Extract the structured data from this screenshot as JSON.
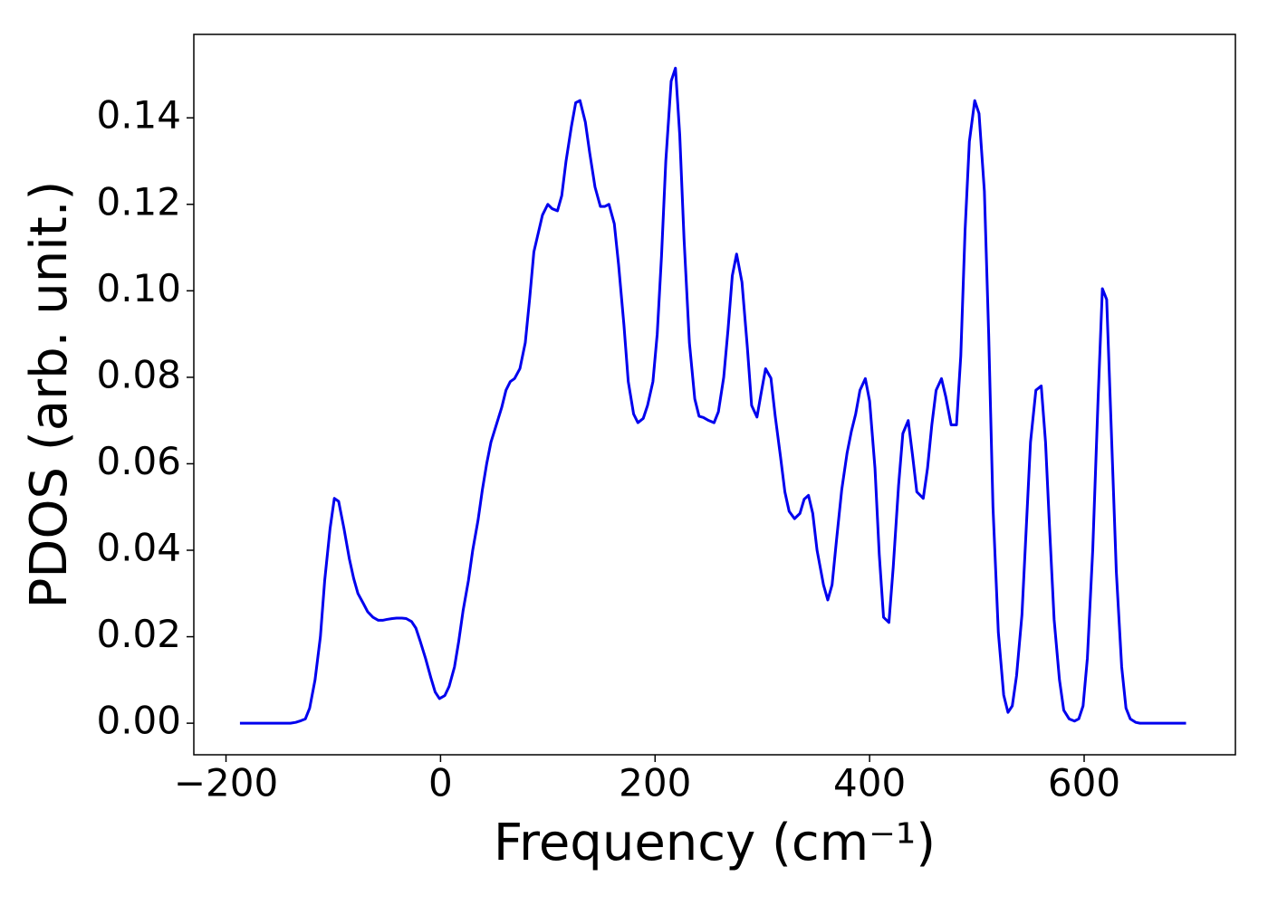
{
  "chart_data": {
    "type": "line",
    "x_label": "Frequency (cm⁻¹)",
    "y_label": "PDOS (arb. unit.)",
    "xlim": [
      -230,
      741
    ],
    "ylim": [
      -0.0073,
      0.1593
    ],
    "xticks": [
      {
        "value": -200,
        "label": "−200"
      },
      0,
      200,
      400,
      600
    ],
    "yticks": [
      {
        "value": 0,
        "label": "0.00"
      },
      {
        "value": 0.02,
        "label": "0.02"
      },
      {
        "value": 0.04,
        "label": "0.04"
      },
      {
        "value": 0.06,
        "label": "0.06"
      },
      {
        "value": 0.08,
        "label": "0.08"
      },
      {
        "value": 0.1,
        "label": "0.10"
      },
      {
        "value": 0.12,
        "label": "0.12"
      },
      {
        "value": 0.14,
        "label": "0.14"
      }
    ],
    "color": "#0000ee",
    "x": [
      -187,
      -183,
      -178,
      -174,
      -170,
      -165,
      -161,
      -157,
      -152,
      -148,
      -144,
      -140,
      -135,
      -131,
      -126,
      -122,
      -117,
      -112,
      -108,
      -103,
      -99,
      -95,
      -90,
      -85,
      -81,
      -77,
      -72,
      -68,
      -63,
      -58,
      -54,
      -50,
      -45,
      -41,
      -36,
      -32,
      -27,
      -23,
      -19,
      -14,
      -9,
      -5,
      -1,
      4,
      8,
      13,
      17,
      21,
      26,
      30,
      35,
      39,
      43,
      47,
      52,
      57,
      61,
      65,
      69,
      74,
      79,
      83,
      87,
      95,
      100,
      104,
      109,
      113,
      117,
      122,
      126,
      130,
      135,
      139,
      144,
      149,
      153,
      157,
      162,
      166,
      171,
      175,
      180,
      184,
      189,
      193,
      198,
      202,
      206,
      210,
      215,
      219,
      223,
      227,
      232,
      237,
      241,
      245,
      250,
      255,
      259,
      264,
      268,
      272,
      276,
      281,
      286,
      290,
      295,
      299,
      303,
      308,
      312,
      317,
      321,
      325,
      330,
      335,
      339,
      343,
      347,
      351,
      357,
      361,
      365,
      369,
      374,
      379,
      383,
      387,
      391,
      396,
      400,
      405,
      409,
      413,
      418,
      422,
      427,
      431,
      436,
      440,
      444,
      450,
      454,
      458,
      462,
      467,
      471,
      476,
      481,
      485,
      489,
      493,
      498,
      502,
      507,
      511,
      515,
      520,
      525,
      529,
      533,
      537,
      542,
      546,
      550,
      555,
      560,
      564,
      568,
      572,
      577,
      581,
      586,
      591,
      595,
      599,
      603,
      608,
      613,
      617,
      621,
      625,
      630,
      635,
      639,
      643,
      648,
      652,
      656,
      661,
      665,
      669,
      674,
      678,
      682,
      687,
      691,
      695
    ],
    "values": [
      0,
      0,
      0,
      0,
      0,
      0,
      0,
      0,
      0,
      0,
      0,
      0,
      0.0002,
      0.0005,
      0.001,
      0.0035,
      0.01,
      0.02,
      0.033,
      0.045,
      0.052,
      0.0513,
      0.045,
      0.038,
      0.0335,
      0.03,
      0.0277,
      0.0258,
      0.0245,
      0.0238,
      0.0238,
      0.024,
      0.0242,
      0.0243,
      0.0243,
      0.0242,
      0.0235,
      0.022,
      0.019,
      0.015,
      0.0105,
      0.0072,
      0.0057,
      0.0064,
      0.0085,
      0.013,
      0.019,
      0.026,
      0.033,
      0.04,
      0.047,
      0.054,
      0.06,
      0.065,
      0.069,
      0.073,
      0.077,
      0.079,
      0.0797,
      0.082,
      0.088,
      0.098,
      0.109,
      0.1175,
      0.12,
      0.119,
      0.1185,
      0.122,
      0.13,
      0.138,
      0.1435,
      0.144,
      0.139,
      0.132,
      0.124,
      0.1195,
      0.1195,
      0.12,
      0.1155,
      0.106,
      0.092,
      0.079,
      0.0715,
      0.0695,
      0.0705,
      0.0735,
      0.079,
      0.09,
      0.108,
      0.13,
      0.1485,
      0.1515,
      0.136,
      0.112,
      0.088,
      0.075,
      0.071,
      0.0707,
      0.07,
      0.0695,
      0.072,
      0.08,
      0.091,
      0.1035,
      0.1085,
      0.102,
      0.087,
      0.0735,
      0.0708,
      0.0765,
      0.082,
      0.0798,
      0.071,
      0.0615,
      0.0535,
      0.049,
      0.0473,
      0.0485,
      0.0518,
      0.0527,
      0.0485,
      0.04,
      0.032,
      0.0285,
      0.032,
      0.042,
      0.054,
      0.0625,
      0.0675,
      0.0715,
      0.077,
      0.0797,
      0.0745,
      0.059,
      0.039,
      0.0245,
      0.0233,
      0.036,
      0.055,
      0.067,
      0.07,
      0.062,
      0.0535,
      0.052,
      0.059,
      0.069,
      0.077,
      0.0797,
      0.0755,
      0.069,
      0.069,
      0.085,
      0.114,
      0.1345,
      0.144,
      0.141,
      0.123,
      0.09,
      0.05,
      0.021,
      0.0065,
      0.0025,
      0.004,
      0.011,
      0.025,
      0.045,
      0.065,
      0.077,
      0.078,
      0.065,
      0.044,
      0.024,
      0.01,
      0.003,
      0.001,
      0.0005,
      0.001,
      0.004,
      0.015,
      0.04,
      0.075,
      0.1005,
      0.098,
      0.07,
      0.035,
      0.013,
      0.0035,
      0.001,
      0.0002,
      0,
      0,
      0,
      0,
      0,
      0,
      0,
      0,
      0,
      0,
      0
    ]
  }
}
